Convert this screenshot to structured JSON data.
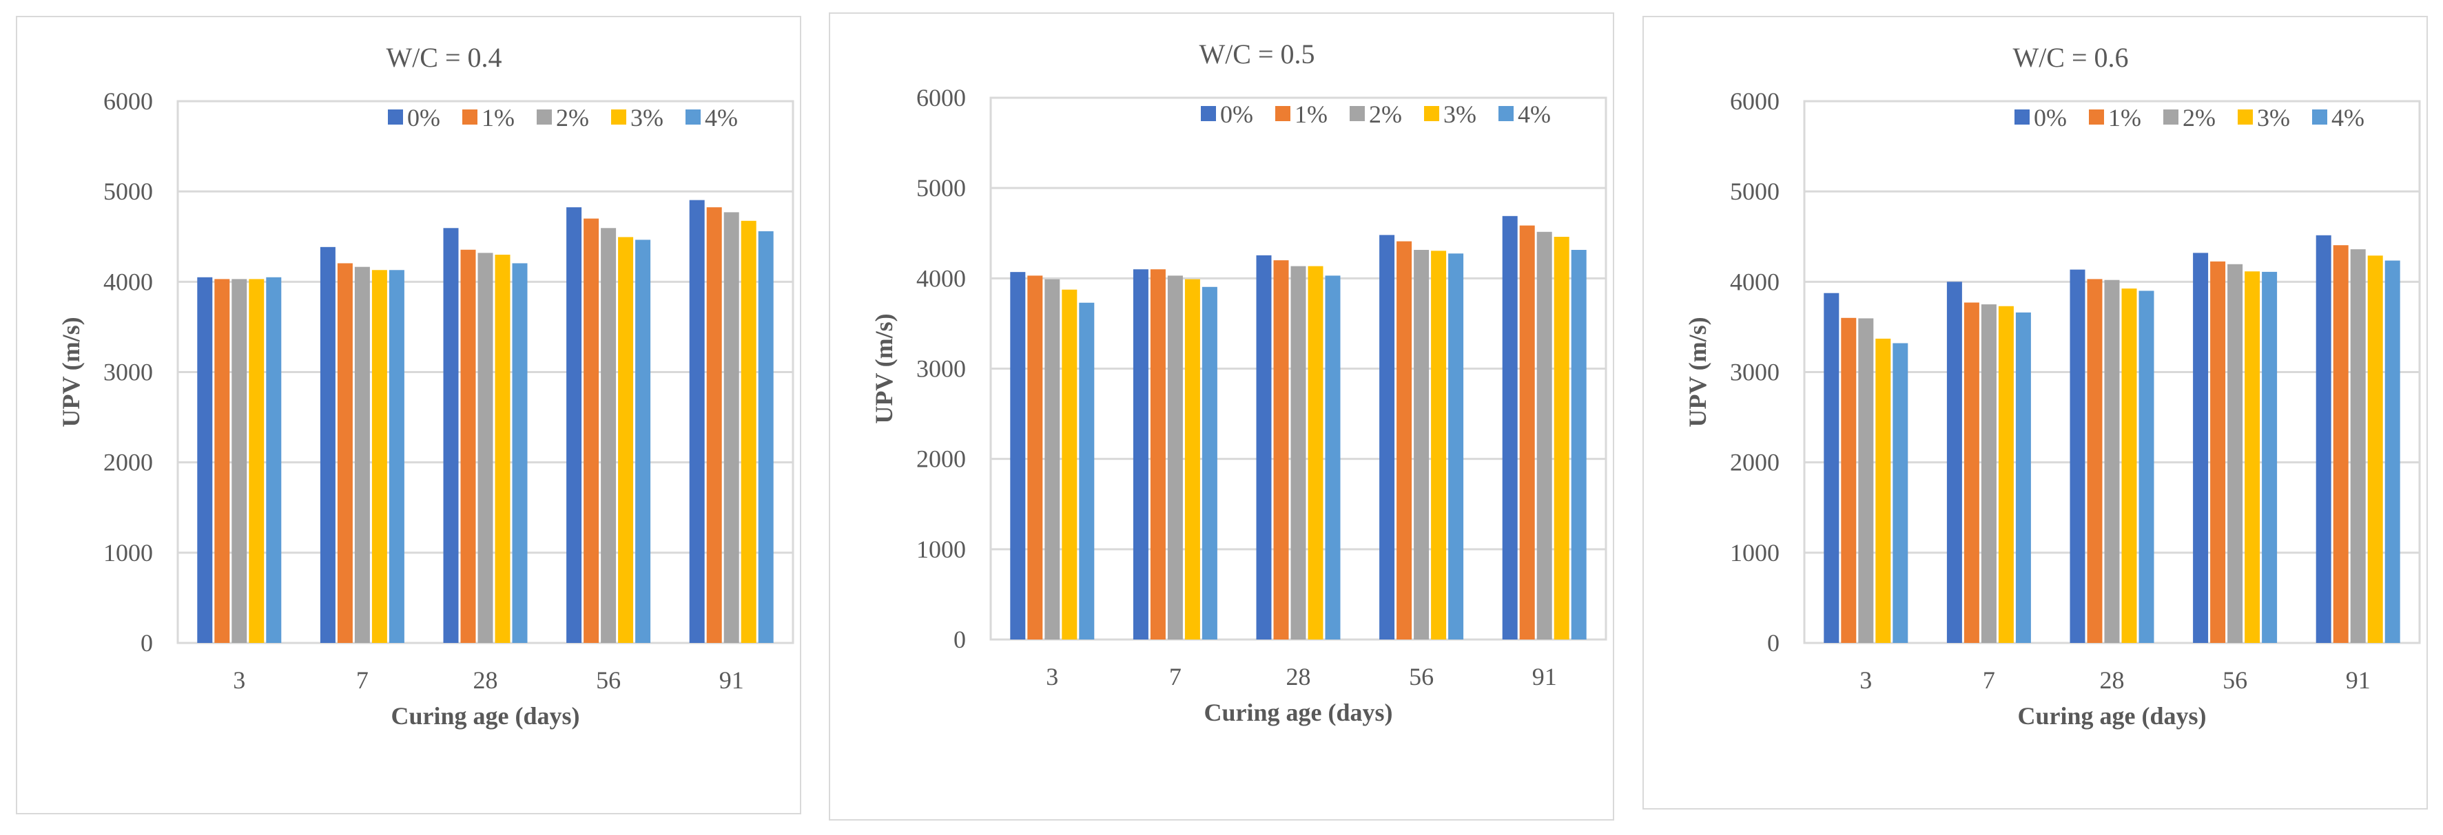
{
  "chart_data": [
    {
      "type": "bar",
      "title": "W/C = 0.4",
      "xlabel": "Curing age (days)",
      "ylabel": "UPV (m/s)",
      "ylim": [
        0,
        6000
      ],
      "yticks": [
        "0",
        "1000",
        "2000",
        "3000",
        "4000",
        "5000",
        "6000"
      ],
      "grid": true,
      "legend_position": "top-right",
      "categories": [
        "3",
        "7",
        "28",
        "56",
        "91"
      ],
      "series": [
        {
          "name": "0%",
          "color": "#4472c4",
          "values": [
            4050,
            4385,
            4595,
            4825,
            4905
          ]
        },
        {
          "name": "1%",
          "color": "#ed7d31",
          "values": [
            4030,
            4205,
            4355,
            4700,
            4825
          ]
        },
        {
          "name": "2%",
          "color": "#a5a5a5",
          "values": [
            4030,
            4165,
            4320,
            4595,
            4770
          ]
        },
        {
          "name": "3%",
          "color": "#ffc000",
          "values": [
            4030,
            4130,
            4300,
            4495,
            4675
          ]
        },
        {
          "name": "4%",
          "color": "#5b9bd5",
          "values": [
            4050,
            4130,
            4205,
            4465,
            4560
          ]
        }
      ]
    },
    {
      "type": "bar",
      "title": "W/C = 0.5",
      "xlabel": "Curing age (days)",
      "ylabel": "UPV (m/s)",
      "ylim": [
        0,
        6000
      ],
      "yticks": [
        "0",
        "1000",
        "2000",
        "3000",
        "4000",
        "5000",
        "6000"
      ],
      "grid": true,
      "legend_position": "top-right",
      "categories": [
        "3",
        "7",
        "28",
        "56",
        "91"
      ],
      "series": [
        {
          "name": "0%",
          "color": "#4472c4",
          "values": [
            4070,
            4100,
            4255,
            4480,
            4690
          ]
        },
        {
          "name": "1%",
          "color": "#ed7d31",
          "values": [
            4030,
            4100,
            4200,
            4410,
            4585
          ]
        },
        {
          "name": "2%",
          "color": "#a5a5a5",
          "values": [
            3990,
            4030,
            4135,
            4315,
            4515
          ]
        },
        {
          "name": "3%",
          "color": "#ffc000",
          "values": [
            3875,
            3990,
            4135,
            4305,
            4460
          ]
        },
        {
          "name": "4%",
          "color": "#5b9bd5",
          "values": [
            3730,
            3905,
            4030,
            4275,
            4315
          ]
        }
      ]
    },
    {
      "type": "bar",
      "title": "W/C = 0.6",
      "xlabel": "Curing age (days)",
      "ylabel": "UPV (m/s)",
      "ylim": [
        0,
        6000
      ],
      "yticks": [
        "0",
        "1000",
        "2000",
        "3000",
        "4000",
        "5000",
        "6000"
      ],
      "grid": true,
      "legend_position": "top-right",
      "categories": [
        "3",
        "7",
        "28",
        "56",
        "91"
      ],
      "series": [
        {
          "name": "0%",
          "color": "#4472c4",
          "values": [
            3875,
            4000,
            4135,
            4320,
            4515
          ]
        },
        {
          "name": "1%",
          "color": "#ed7d31",
          "values": [
            3600,
            3770,
            4030,
            4225,
            4405
          ]
        },
        {
          "name": "2%",
          "color": "#a5a5a5",
          "values": [
            3595,
            3750,
            4020,
            4195,
            4360
          ]
        },
        {
          "name": "3%",
          "color": "#ffc000",
          "values": [
            3370,
            3730,
            3925,
            4115,
            4290
          ]
        },
        {
          "name": "4%",
          "color": "#5b9bd5",
          "values": [
            3320,
            3660,
            3900,
            4110,
            4235
          ]
        }
      ]
    }
  ]
}
